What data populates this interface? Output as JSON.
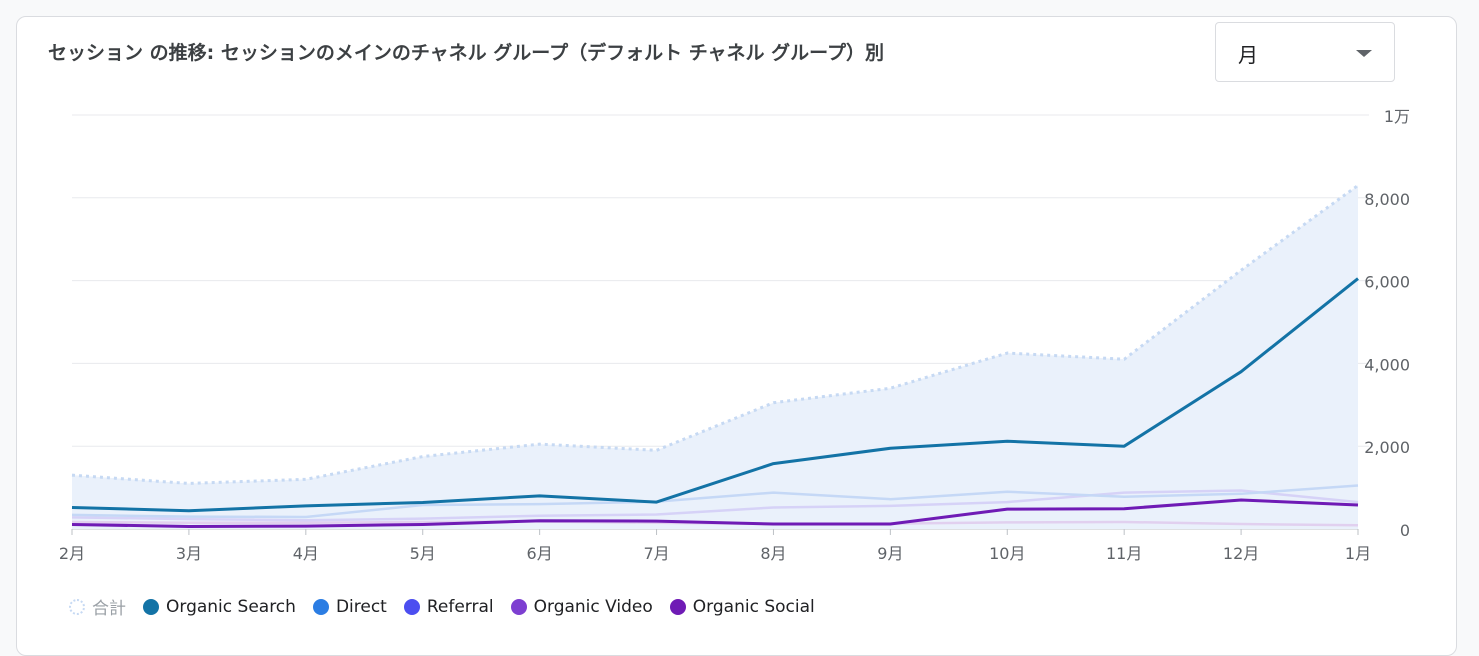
{
  "header": {
    "title": "セッション の推移: セッションのメインのチャネル グループ（デフォルト チャネル グループ）別",
    "period_select": "月"
  },
  "chart_data": {
    "type": "line",
    "categories": [
      "2月",
      "3月",
      "4月",
      "5月",
      "6月",
      "7月",
      "8月",
      "9月",
      "10月",
      "11月",
      "12月",
      "1月"
    ],
    "ylim": [
      0,
      10000
    ],
    "yticks": [
      {
        "value": 0,
        "label": "0"
      },
      {
        "value": 2000,
        "label": "2,000"
      },
      {
        "value": 4000,
        "label": "4,000"
      },
      {
        "value": 6000,
        "label": "6,000"
      },
      {
        "value": 8000,
        "label": "8,000"
      },
      {
        "value": 10000,
        "label": "1万"
      }
    ],
    "grid": true,
    "legend_position": "bottom-left",
    "series": [
      {
        "name": "合計",
        "color": "#c6d9f3",
        "style": "dotted-area",
        "values": [
          1300,
          1100,
          1200,
          1750,
          2050,
          1900,
          3050,
          3400,
          4250,
          4100,
          6250,
          8300
        ]
      },
      {
        "name": "Organic Search",
        "color": "#1373a6",
        "style": "bold",
        "values": [
          520,
          440,
          560,
          640,
          800,
          650,
          1580,
          1950,
          2120,
          2000,
          3800,
          6050
        ]
      },
      {
        "name": "Direct",
        "color": "#c5d8f6",
        "style": "faint",
        "values": [
          340,
          300,
          290,
          580,
          600,
          660,
          880,
          720,
          900,
          780,
          850,
          1050
        ]
      },
      {
        "name": "Referral",
        "color": "#d6d2f7",
        "style": "faint",
        "values": [
          280,
          240,
          210,
          250,
          320,
          350,
          520,
          560,
          650,
          880,
          930,
          650
        ]
      },
      {
        "name": "Organic Video",
        "color": "#e1d0ef",
        "style": "faint",
        "values": [
          170,
          150,
          150,
          170,
          180,
          150,
          120,
          130,
          160,
          170,
          120,
          90
        ]
      },
      {
        "name": "Organic Social",
        "color": "#6f1bb5",
        "style": "bold",
        "values": [
          110,
          60,
          70,
          110,
          200,
          190,
          120,
          120,
          480,
          490,
          700,
          580
        ]
      }
    ]
  },
  "legend": {
    "items": [
      {
        "label": "合計",
        "color": "#c6d9f3"
      },
      {
        "label": "Organic Search",
        "color": "#1373a6"
      },
      {
        "label": "Direct",
        "color": "#2b7de3"
      },
      {
        "label": "Referral",
        "color": "#4c4ef0"
      },
      {
        "label": "Organic Video",
        "color": "#7d3fd1"
      },
      {
        "label": "Organic Social",
        "color": "#6f1bb5"
      }
    ]
  }
}
